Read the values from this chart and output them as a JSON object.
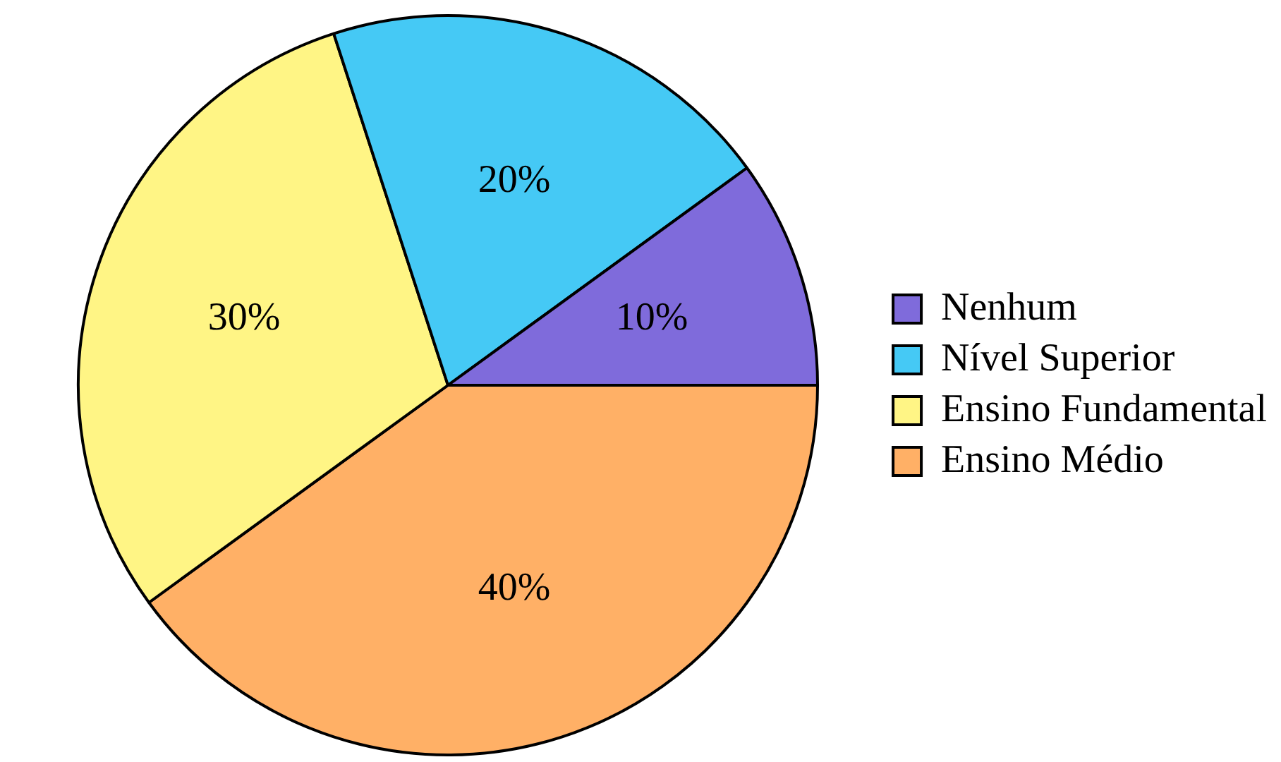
{
  "chart_data": {
    "type": "pie",
    "categories": [
      "Nenhum",
      "Nível Superior",
      "Ensino Fundamental",
      "Ensino Médio"
    ],
    "values": [
      10,
      20,
      30,
      40
    ],
    "value_labels": [
      "10%",
      "20%",
      "30%",
      "40%"
    ],
    "colors": [
      "#7f6bdb",
      "#45c9f5",
      "#fff585",
      "#ffb066"
    ],
    "legend": "right"
  }
}
